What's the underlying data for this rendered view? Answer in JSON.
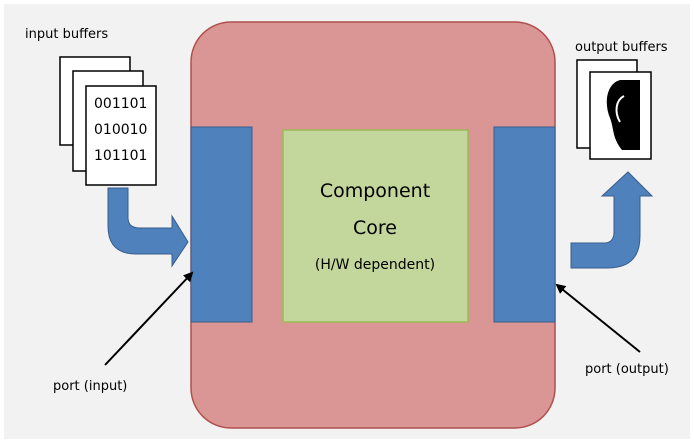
{
  "input_buffers": {
    "label": "input buffers",
    "lines": [
      "001101",
      "010010",
      "101101"
    ]
  },
  "output_buffers": {
    "label": "output buffers"
  },
  "core": {
    "title_lines": [
      "Component",
      "Core"
    ],
    "subtitle": "(H/W dependent)"
  },
  "ports": {
    "input": "port (input)",
    "output": "port (output)"
  }
}
